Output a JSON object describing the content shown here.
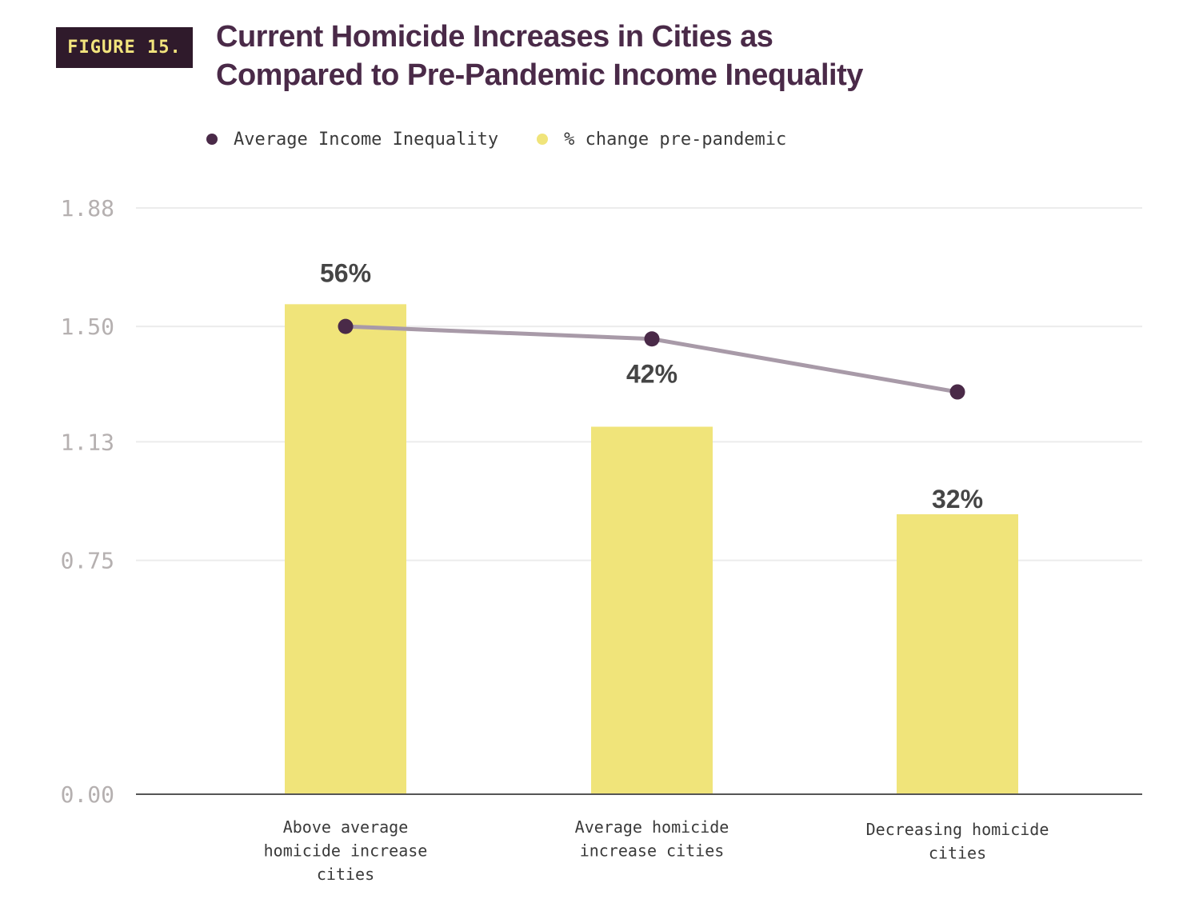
{
  "figure_label": "FIGURE 15.",
  "title_line1": "Current Homicide Increases in Cities as",
  "title_line2": "Compared to Pre-Pandemic Income Inequality",
  "legend": [
    {
      "label": "Average Income Inequality",
      "color": "#4a2a48"
    },
    {
      "label": "% change pre-pandemic",
      "color": "#f0e47a"
    }
  ],
  "chart_data": {
    "type": "bar",
    "categories": [
      [
        "Above average",
        "homicide increase",
        "cities"
      ],
      [
        "Average homicide",
        "increase cities"
      ],
      [
        "Decreasing homicide",
        "cities"
      ]
    ],
    "y_ticks": [
      "1.88",
      "1.50",
      "1.13",
      "0.75",
      "0.00"
    ],
    "ylim": [
      0,
      1.88
    ],
    "series": [
      {
        "name": "% change pre-pandemic",
        "type": "bar",
        "color": "#f0e47a",
        "values": [
          56,
          42,
          32
        ],
        "labels": [
          "56%",
          "42%",
          "32%"
        ]
      },
      {
        "name": "Average Income Inequality",
        "type": "line",
        "color": "#4a2a48",
        "line_color": "#a89aa8",
        "values": [
          1.5,
          1.46,
          1.29
        ]
      }
    ],
    "bar_scale_max_percent": 67,
    "grid": true,
    "legend_position": "top"
  }
}
